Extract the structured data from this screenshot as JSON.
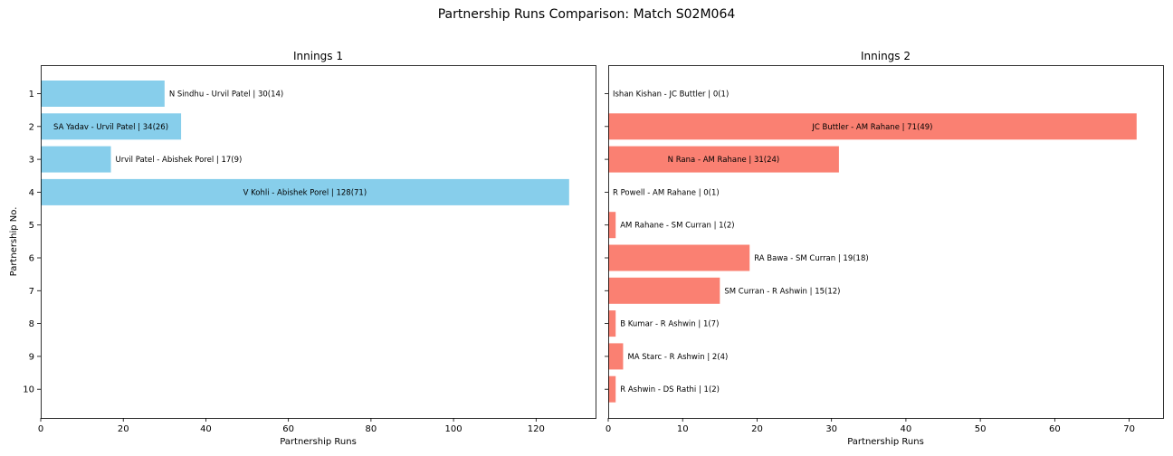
{
  "figure": {
    "title": "Partnership Runs Comparison: Match S02M064"
  },
  "chart_data": [
    {
      "type": "bar",
      "orientation": "horizontal",
      "title": "Innings 1",
      "xlabel": "Partnership Runs",
      "ylabel": "Partnership No.",
      "xlim": [
        0,
        134.4
      ],
      "xticks": [
        0,
        20,
        40,
        60,
        80,
        100,
        120
      ],
      "categories": [
        "1",
        "2",
        "3",
        "4",
        "5",
        "6",
        "7",
        "8",
        "9",
        "10"
      ],
      "color": "#87ceeb",
      "bars": [
        {
          "partnership": 1,
          "value": 30,
          "label": "N Sindhu - Urvil Patel | 30(14)",
          "label_inside": false
        },
        {
          "partnership": 2,
          "value": 34,
          "label": "SA Yadav - Urvil Patel | 34(26)",
          "label_inside": true
        },
        {
          "partnership": 3,
          "value": 17,
          "label": "Urvil Patel - Abishek Porel | 17(9)",
          "label_inside": false
        },
        {
          "partnership": 4,
          "value": 128,
          "label": "V Kohli - Abishek Porel | 128(71)",
          "label_inside": true
        }
      ]
    },
    {
      "type": "bar",
      "orientation": "horizontal",
      "title": "Innings 2",
      "xlabel": "Partnership Runs",
      "ylabel": "",
      "xlim": [
        0,
        74.55
      ],
      "xticks": [
        0,
        10,
        20,
        30,
        40,
        50,
        60,
        70
      ],
      "categories": [
        "1",
        "2",
        "3",
        "4",
        "5",
        "6",
        "7",
        "8",
        "9",
        "10"
      ],
      "color": "#fa8072",
      "bars": [
        {
          "partnership": 1,
          "value": 0,
          "label": "Ishan Kishan - JC Buttler | 0(1)",
          "label_inside": false
        },
        {
          "partnership": 2,
          "value": 71,
          "label": "JC Buttler - AM Rahane | 71(49)",
          "label_inside": true
        },
        {
          "partnership": 3,
          "value": 31,
          "label": "N Rana - AM Rahane | 31(24)",
          "label_inside": true
        },
        {
          "partnership": 4,
          "value": 0,
          "label": "R Powell - AM Rahane | 0(1)",
          "label_inside": false
        },
        {
          "partnership": 5,
          "value": 1,
          "label": "AM Rahane - SM Curran | 1(2)",
          "label_inside": false
        },
        {
          "partnership": 6,
          "value": 19,
          "label": "RA Bawa - SM Curran | 19(18)",
          "label_inside": false
        },
        {
          "partnership": 7,
          "value": 15,
          "label": "SM Curran - R Ashwin | 15(12)",
          "label_inside": false
        },
        {
          "partnership": 8,
          "value": 1,
          "label": "B Kumar - R Ashwin | 1(7)",
          "label_inside": false
        },
        {
          "partnership": 9,
          "value": 2,
          "label": "MA Starc - R Ashwin | 2(4)",
          "label_inside": false
        },
        {
          "partnership": 10,
          "value": 1,
          "label": "R Ashwin - DS Rathi | 1(2)",
          "label_inside": false
        }
      ]
    }
  ]
}
